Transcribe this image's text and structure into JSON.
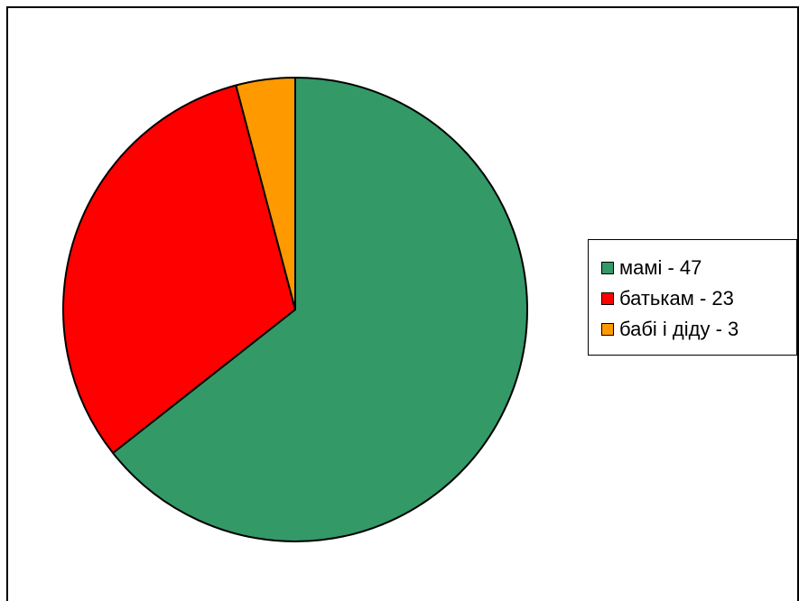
{
  "chart_data": {
    "type": "pie",
    "title": "",
    "series": [
      {
        "values": [
          47,
          23,
          3
        ],
        "categories": [
          "мамі - 47",
          "батькам - 23",
          "бабі і діду - 3"
        ]
      }
    ],
    "slices": [
      {
        "label": "мамі - 47",
        "value": 47,
        "color": "#339966"
      },
      {
        "label": "батькам - 23",
        "value": 23,
        "color": "#ff0000"
      },
      {
        "label": "бабі і діду - 3",
        "value": 3,
        "color": "#ff9900"
      }
    ],
    "start_angle_deg": 0,
    "direction": "clockwise",
    "legend_position": "right"
  }
}
